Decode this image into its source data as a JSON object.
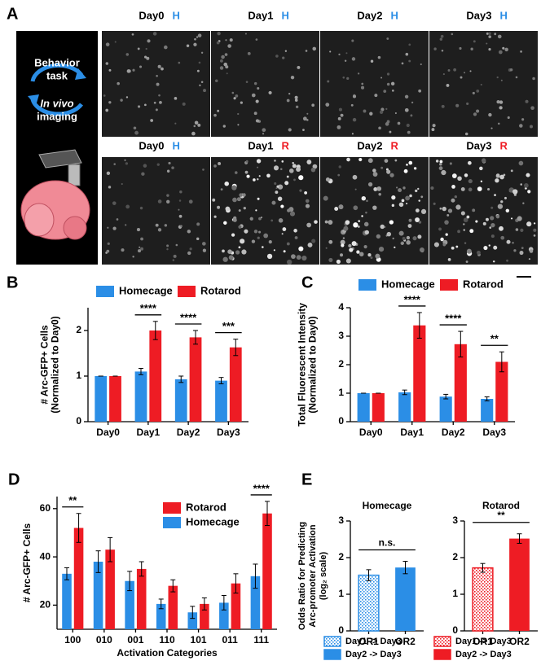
{
  "panel_labels": [
    "A",
    "B",
    "C",
    "D",
    "E"
  ],
  "panel_a": {
    "side_text": [
      "Behavior",
      "task",
      "In vivo",
      "imaging"
    ],
    "rows": [
      [
        {
          "day": "Day0",
          "condition": "H"
        },
        {
          "day": "Day1",
          "condition": "H"
        },
        {
          "day": "Day2",
          "condition": "H"
        },
        {
          "day": "Day3",
          "condition": "H"
        }
      ],
      [
        {
          "day": "Day0",
          "condition": "H"
        },
        {
          "day": "Day1",
          "condition": "R"
        },
        {
          "day": "Day2",
          "condition": "R"
        },
        {
          "day": "Day3",
          "condition": "R"
        }
      ]
    ],
    "condition_colors": {
      "H": "#2b8ee6",
      "R": "#ee1c24"
    }
  },
  "chart_data": [
    {
      "type": "bar",
      "y_label": [
        "# Arc-GFP+ Cells",
        "(Normalized to Day0)"
      ],
      "categories": [
        "Day0",
        "Day1",
        "Day2",
        "Day3"
      ],
      "series": [
        {
          "name": "Homecage",
          "color": "#2b8ee6",
          "values": [
            1,
            1.1,
            0.93,
            0.9
          ],
          "errors": [
            0,
            0.07,
            0.07,
            0.07
          ]
        },
        {
          "name": "Rotarod",
          "color": "#ee1c24",
          "values": [
            1,
            2.0,
            1.85,
            1.63
          ],
          "errors": [
            0,
            0.2,
            0.15,
            0.18
          ]
        }
      ],
      "significance": [
        null,
        "****",
        "****",
        "***"
      ],
      "ylim": [
        0,
        2.5
      ],
      "yticks": [
        0,
        1,
        2
      ]
    },
    {
      "type": "bar",
      "y_label": [
        "Total Fluorescent Intensity",
        "(Normalized to Day0)"
      ],
      "categories": [
        "Day0",
        "Day1",
        "Day2",
        "Day3"
      ],
      "series": [
        {
          "name": "Homecage",
          "color": "#2b8ee6",
          "values": [
            1,
            1.03,
            0.88,
            0.8
          ],
          "errors": [
            0,
            0.08,
            0.08,
            0.07
          ]
        },
        {
          "name": "Rotarod",
          "color": "#ee1c24",
          "values": [
            1,
            3.38,
            2.72,
            2.1
          ],
          "errors": [
            0,
            0.45,
            0.45,
            0.35
          ]
        }
      ],
      "significance": [
        null,
        "****",
        "****",
        "**"
      ],
      "ylim": [
        0,
        4
      ],
      "yticks": [
        0,
        1,
        2,
        3,
        4
      ]
    },
    {
      "type": "bar",
      "y_label": [
        "# Arc-GFP+ Cells"
      ],
      "x_label": "Activation Categories",
      "categories": [
        "100",
        "010",
        "001",
        "110",
        "101",
        "011",
        "111"
      ],
      "series": [
        {
          "name": "Homecage",
          "color": "#2b8ee6",
          "values": [
            33,
            38,
            30,
            20.5,
            17,
            21,
            32
          ],
          "errors": [
            2.5,
            4.5,
            4,
            2,
            2.5,
            3,
            5
          ]
        },
        {
          "name": "Rotarod",
          "color": "#ee1c24",
          "values": [
            52,
            43,
            35,
            28,
            20.5,
            29,
            58
          ],
          "errors": [
            6,
            5,
            3,
            2.5,
            2.5,
            4,
            5
          ]
        }
      ],
      "legend_order": [
        1,
        0
      ],
      "significance": [
        "**",
        null,
        null,
        null,
        null,
        null,
        "****"
      ],
      "ylim": [
        10,
        65
      ],
      "yticks": [
        20,
        40,
        60
      ]
    },
    {
      "type": "bar",
      "title": "Homecage",
      "y_label": [
        "Odds Ratio for Predicting",
        "Arc-promoter Activation",
        "(log₂ scale)"
      ],
      "categories": [
        "OR1",
        "OR2"
      ],
      "series": [
        {
          "color": "#2b8ee6",
          "styles": [
            "hatched",
            "solid"
          ],
          "values": [
            1.52,
            1.73
          ],
          "errors": [
            0.15,
            0.17
          ]
        }
      ],
      "bracket": "n.s.",
      "ylim": [
        0,
        3
      ],
      "yticks": [
        0,
        1,
        2,
        3
      ]
    },
    {
      "type": "bar",
      "title": "Rotarod",
      "categories": [
        "OR1",
        "OR2"
      ],
      "series": [
        {
          "color": "#ee1c24",
          "styles": [
            "hatched",
            "solid"
          ],
          "values": [
            1.72,
            2.52
          ],
          "errors": [
            0.12,
            0.13
          ]
        }
      ],
      "bracket": "**",
      "ylim": [
        0,
        3
      ],
      "yticks": [
        0,
        1,
        2,
        3
      ]
    }
  ],
  "e_legend": [
    {
      "name": "Day1 -> Day3",
      "color": "#2b8ee6",
      "style": "hatched"
    },
    {
      "name": "Day1 -> Day3",
      "color": "#ee1c24",
      "style": "hatched"
    },
    {
      "name": "Day2 -> Day3",
      "color": "#2b8ee6",
      "style": "solid"
    },
    {
      "name": "Day2 -> Day3",
      "color": "#ee1c24",
      "style": "solid"
    }
  ]
}
